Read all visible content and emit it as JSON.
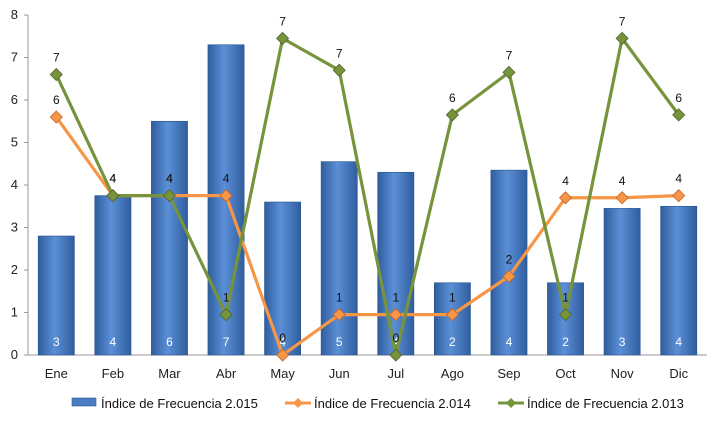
{
  "chart_data": {
    "type": "bar",
    "categories": [
      "Ene",
      "Feb",
      "Mar",
      "Abr",
      "May",
      "Jun",
      "Jul",
      "Ago",
      "Sep",
      "Oct",
      "Nov",
      "Dic"
    ],
    "ylim": [
      0,
      8
    ],
    "yticks": [
      0,
      1,
      2,
      3,
      4,
      5,
      6,
      7,
      8
    ],
    "grid": false,
    "legend": "bottom",
    "series": [
      {
        "name": "Índice de Frecuencia 2.015",
        "kind": "bar",
        "color": "#4A7EC2",
        "values": [
          2.8,
          3.75,
          5.5,
          7.3,
          3.6,
          4.55,
          4.3,
          1.7,
          4.35,
          1.7,
          3.45,
          3.5
        ],
        "labels": [
          "3",
          "4",
          "6",
          "7",
          "4",
          "5",
          "4",
          "2",
          "4",
          "2",
          "3",
          "4"
        ]
      },
      {
        "name": "Índice de Frecuencia 2.014",
        "kind": "line",
        "color": "#F79646",
        "values": [
          5.6,
          3.75,
          3.75,
          3.75,
          0.0,
          0.95,
          0.95,
          0.95,
          1.85,
          3.7,
          3.7,
          3.75
        ],
        "labels": [
          "6",
          "4",
          "4",
          "4",
          "0",
          "1",
          "1",
          "1",
          "2",
          "4",
          "4",
          "4"
        ]
      },
      {
        "name": "Índice de Frecuencia 2.013",
        "kind": "line",
        "color": "#77933C",
        "values": [
          6.6,
          3.75,
          3.75,
          0.95,
          7.45,
          6.7,
          0.0,
          5.65,
          6.65,
          0.95,
          7.45,
          5.65
        ],
        "labels": [
          "7",
          "4",
          "4",
          "1",
          "7",
          "7",
          "0",
          "6",
          "7",
          "1",
          "7",
          "6"
        ]
      }
    ]
  }
}
